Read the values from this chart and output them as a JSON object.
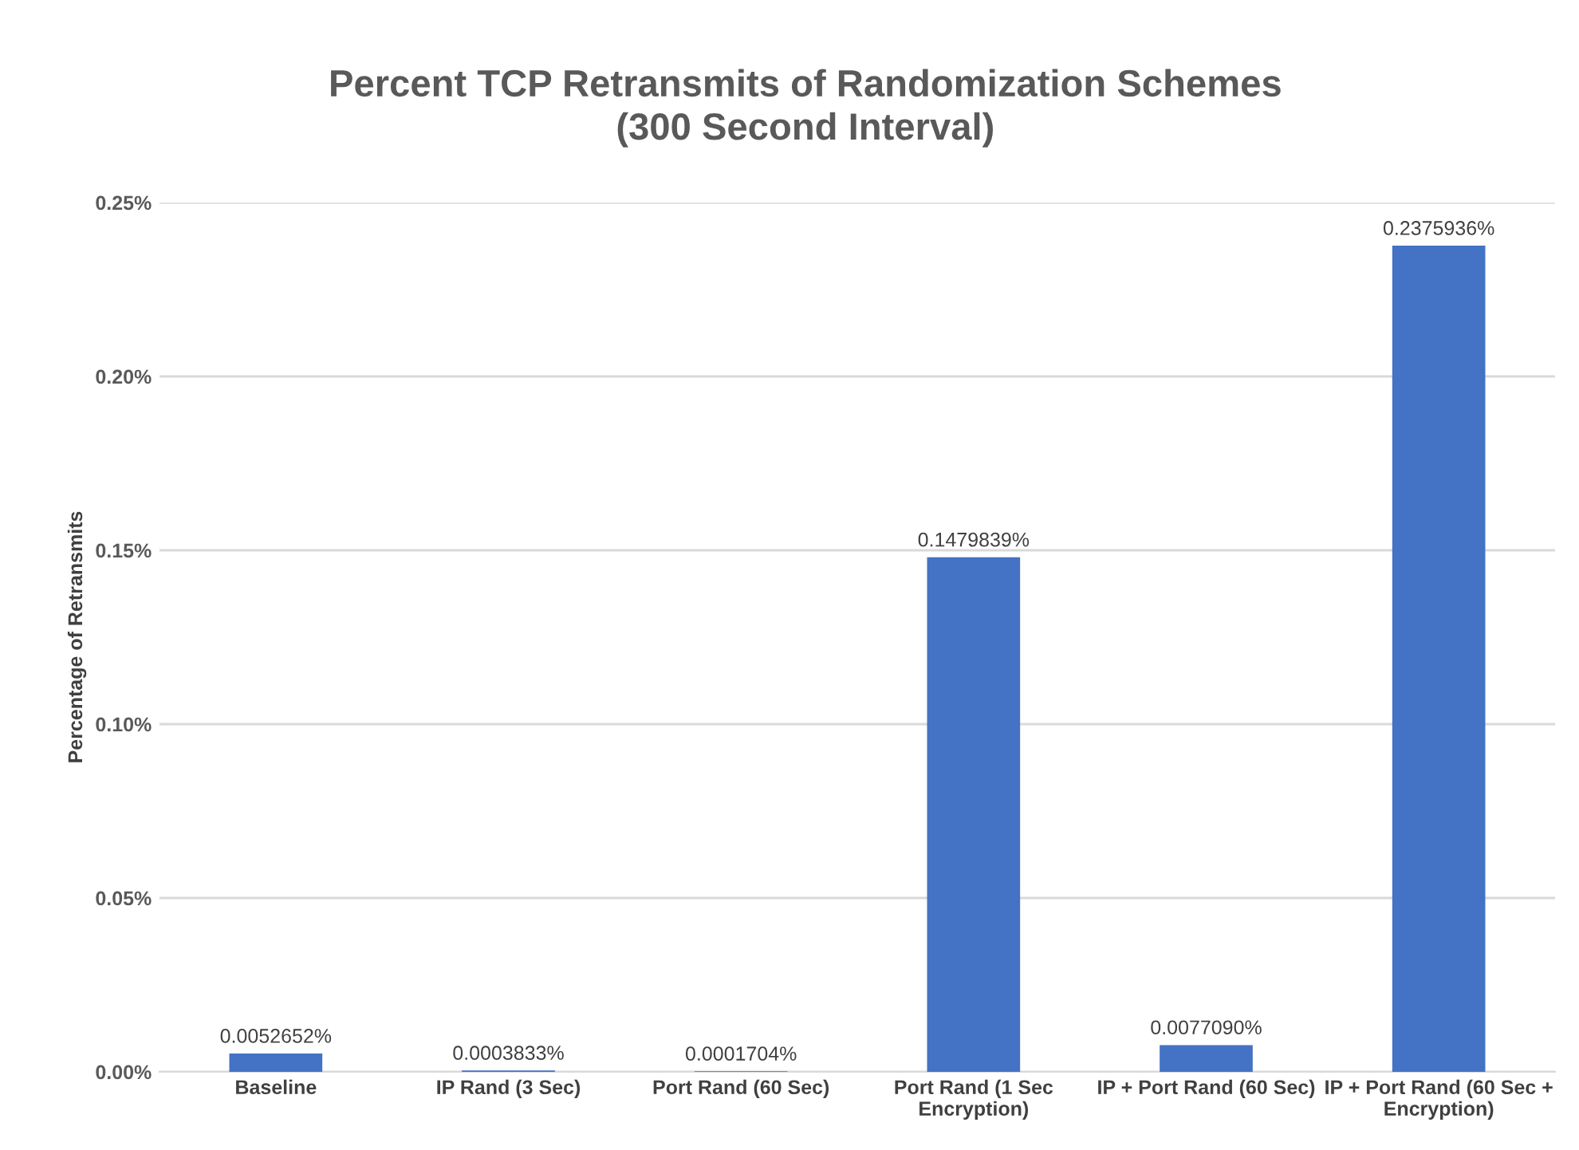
{
  "chart_data": {
    "type": "bar",
    "title": "Percent TCP Retransmits of Randomization Schemes\n(300 Second Interval)",
    "ylabel": "Percentage of Retransmits",
    "categories": [
      "Baseline",
      "IP Rand (3 Sec)",
      "Port Rand (60 Sec)",
      "Port Rand (1 Sec\nEncryption)",
      "IP + Port Rand (60 Sec)",
      "IP + Port Rand (60 Sec +\nEncryption)"
    ],
    "values": [
      0.0052652,
      0.0003833,
      0.0001704,
      0.1479839,
      0.007709,
      0.2375936
    ],
    "value_labels": [
      "0.0052652%",
      "0.0003833%",
      "0.0001704%",
      "0.1479839%",
      "0.0077090%",
      "0.2375936%"
    ],
    "color": "#4472c4",
    "ylim": [
      0,
      0.25
    ],
    "yticks": [
      {
        "value": 0,
        "label": "0.00%"
      },
      {
        "value": 0.05,
        "label": "0.05%"
      },
      {
        "value": 0.1,
        "label": "0.10%"
      },
      {
        "value": 0.15,
        "label": "0.15%"
      },
      {
        "value": 0.2,
        "label": "0.20%"
      },
      {
        "value": 0.25,
        "label": "0.25%"
      }
    ],
    "grid": "y"
  }
}
